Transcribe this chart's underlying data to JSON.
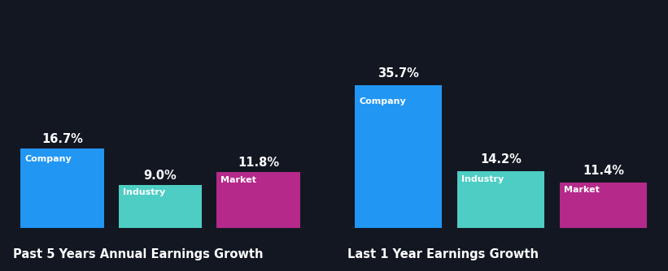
{
  "background_color": "#131722",
  "chart1": {
    "title": "Past 5 Years Annual Earnings Growth",
    "categories": [
      "Company",
      "Industry",
      "Market"
    ],
    "values": [
      16.7,
      9.0,
      11.8
    ],
    "colors": [
      "#2196f3",
      "#4ecdc4",
      "#b5298a"
    ]
  },
  "chart2": {
    "title": "Last 1 Year Earnings Growth",
    "categories": [
      "Company",
      "Industry",
      "Market"
    ],
    "values": [
      35.7,
      14.2,
      11.4
    ],
    "colors": [
      "#2196f3",
      "#4ecdc4",
      "#b5298a"
    ]
  },
  "label_fontsize": 8.0,
  "value_fontsize": 10.5,
  "title_fontsize": 10.5,
  "text_color": "#ffffff",
  "bar_width": 0.85,
  "ylim_multiplier1": 2.6,
  "ylim_multiplier2": 1.45
}
